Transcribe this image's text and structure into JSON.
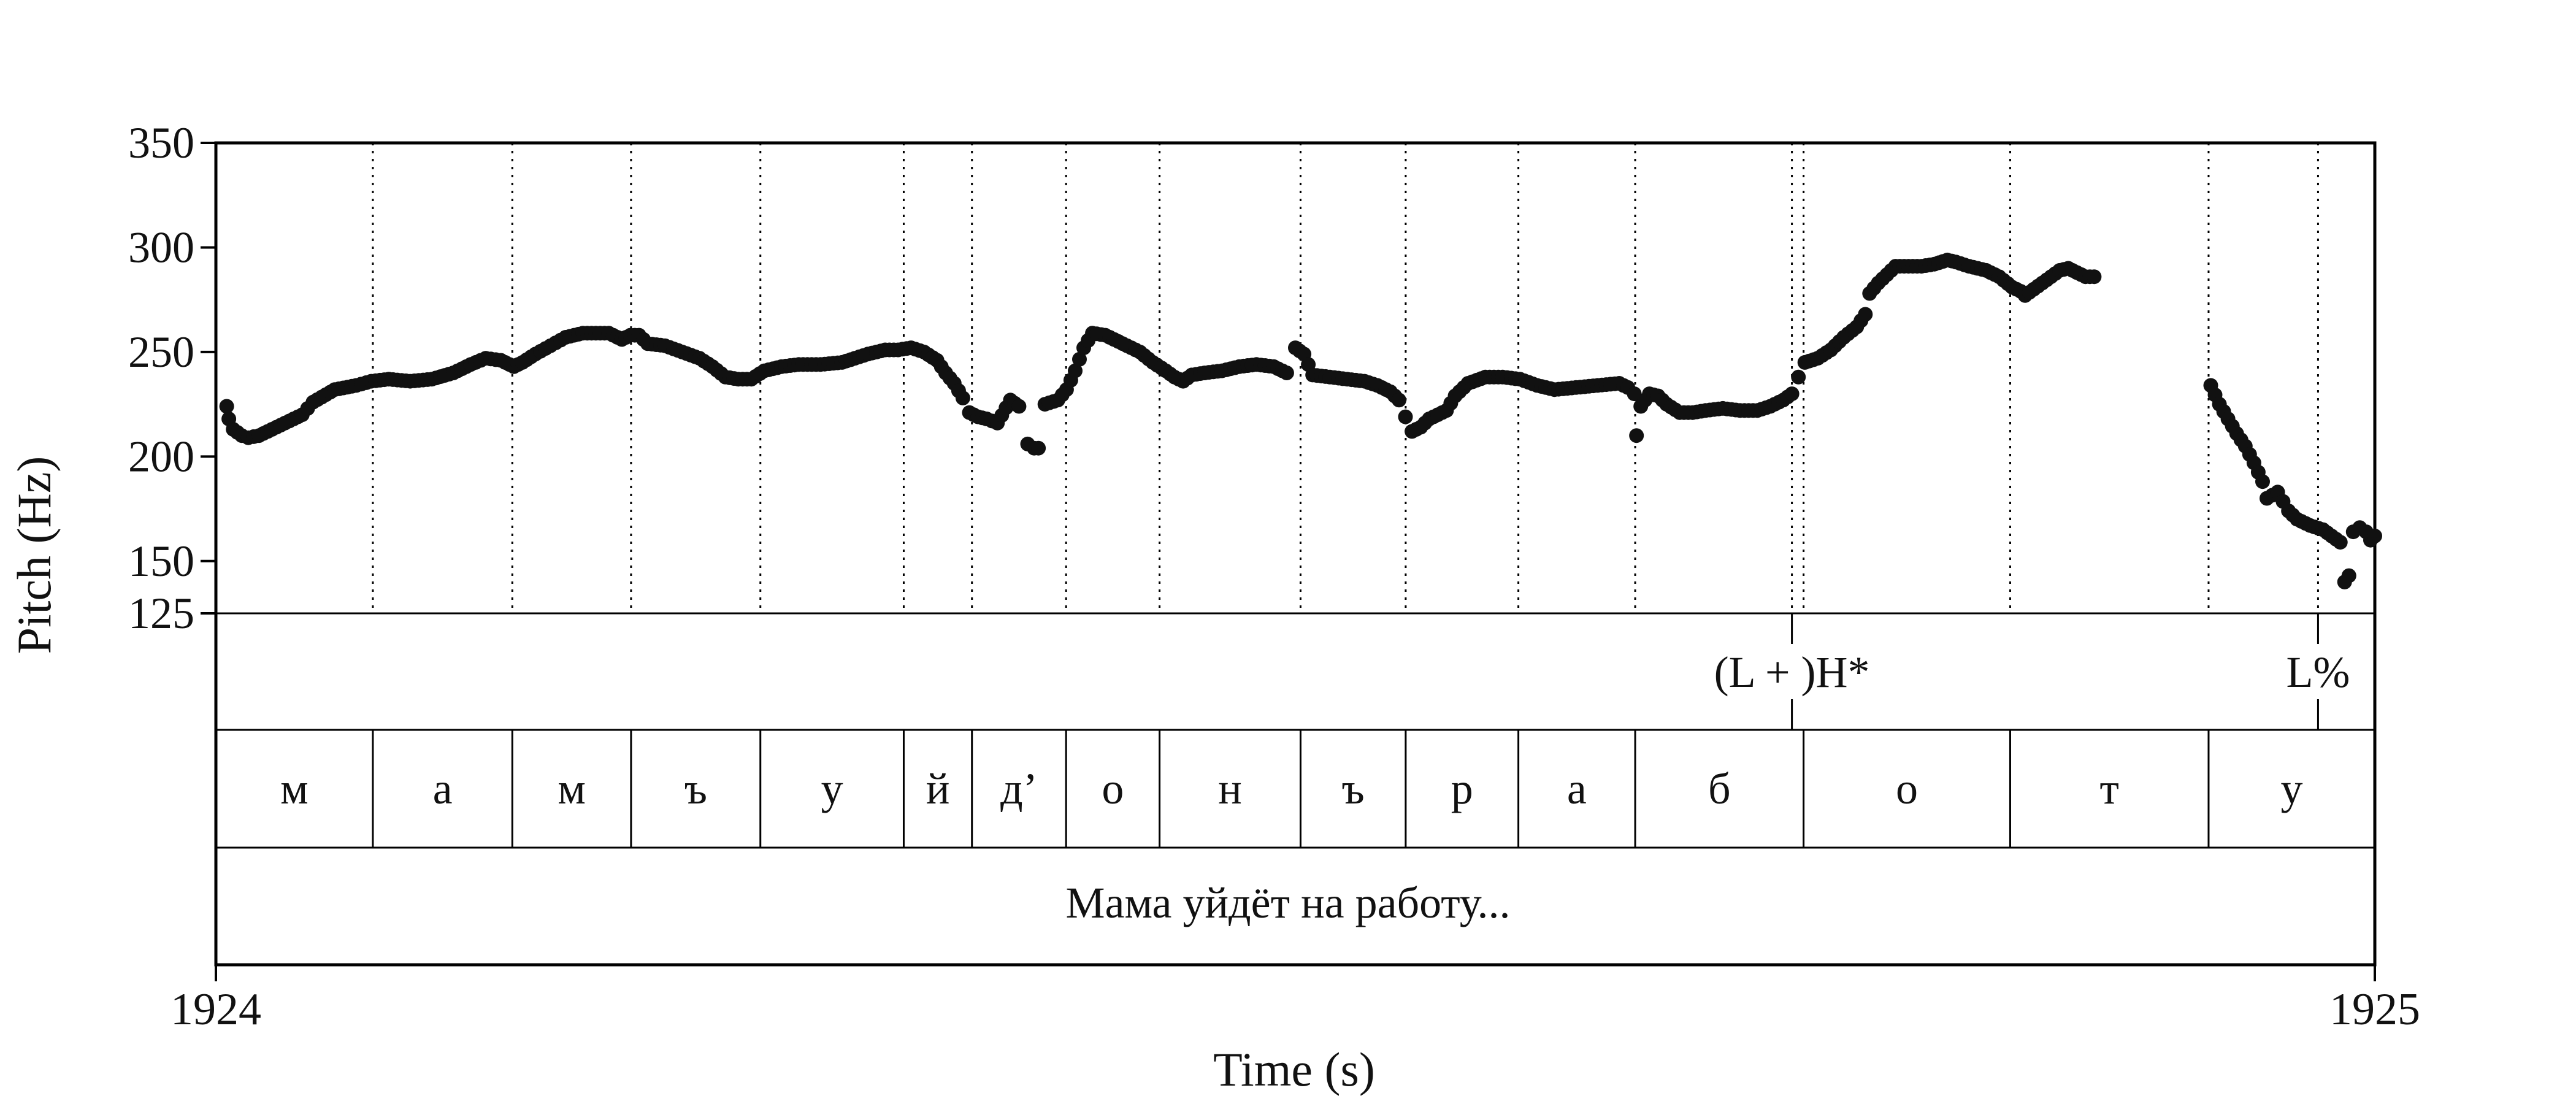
{
  "chart_data": {
    "type": "scatter",
    "xlabel": "Time (s)",
    "ylabel": "Pitch (Hz)",
    "xlim": [
      1924,
      1925
    ],
    "ylim": [
      125,
      350
    ],
    "y_ticks": [
      {
        "value": 350,
        "label": "350"
      },
      {
        "value": 300,
        "label": "300"
      },
      {
        "value": 250,
        "label": "250"
      },
      {
        "value": 200,
        "label": "200"
      },
      {
        "value": 150,
        "label": "150"
      },
      {
        "value": 125,
        "label": "125"
      }
    ],
    "x_ticks": [
      {
        "value": 1924,
        "label": "1924"
      },
      {
        "value": 1925,
        "label": "1925"
      }
    ],
    "segment_boundaries": [
      1924.0727,
      1924.1373,
      1924.1923,
      1924.2522,
      1924.3186,
      1924.3502,
      1924.3938,
      1924.4371,
      1924.5024,
      1924.5511,
      1924.6033,
      1924.6574,
      1924.7354,
      1924.8311,
      1924.923,
      1925.0
    ],
    "segments": [
      {
        "start": 1924.0,
        "end": 1924.0727,
        "label": "м"
      },
      {
        "start": 1924.0727,
        "end": 1924.1373,
        "label": "а"
      },
      {
        "start": 1924.1373,
        "end": 1924.1923,
        "label": "м"
      },
      {
        "start": 1924.1923,
        "end": 1924.2522,
        "label": "ъ"
      },
      {
        "start": 1924.2522,
        "end": 1924.3186,
        "label": "у"
      },
      {
        "start": 1924.3186,
        "end": 1924.3502,
        "label": "й"
      },
      {
        "start": 1924.3502,
        "end": 1924.3938,
        "label": "д’"
      },
      {
        "start": 1924.3938,
        "end": 1924.4371,
        "label": "о"
      },
      {
        "start": 1924.4371,
        "end": 1924.5024,
        "label": "н"
      },
      {
        "start": 1924.5024,
        "end": 1924.5511,
        "label": "ъ"
      },
      {
        "start": 1924.5511,
        "end": 1924.6033,
        "label": "р"
      },
      {
        "start": 1924.6033,
        "end": 1924.6574,
        "label": "а"
      },
      {
        "start": 1924.6574,
        "end": 1924.7354,
        "label": "б"
      },
      {
        "start": 1924.7354,
        "end": 1924.8311,
        "label": "о"
      },
      {
        "start": 1924.8311,
        "end": 1924.923,
        "label": "т"
      },
      {
        "start": 1924.923,
        "end": 1925.0,
        "label": "у"
      }
    ],
    "tones": [
      {
        "time": 1924.73,
        "label": "(L + )H*"
      },
      {
        "time": 1924.9737,
        "label": "L%"
      }
    ],
    "sentence": "Мама уйдёт на работу...",
    "pitch_series": [
      [
        1924.005,
        224
      ],
      [
        1924.006,
        218
      ],
      [
        1924.008,
        213
      ],
      [
        1924.012,
        210
      ],
      [
        1924.015,
        209
      ],
      [
        1924.02,
        210
      ],
      [
        1924.03,
        215
      ],
      [
        1924.04,
        220
      ],
      [
        1924.045,
        226
      ],
      [
        1924.055,
        232
      ],
      [
        1924.065,
        234
      ],
      [
        1924.072,
        236
      ],
      [
        1924.08,
        237
      ],
      [
        1924.09,
        236
      ],
      [
        1924.1,
        237
      ],
      [
        1924.11,
        240
      ],
      [
        1924.118,
        244
      ],
      [
        1924.125,
        247
      ],
      [
        1924.132,
        246
      ],
      [
        1924.138,
        243
      ],
      [
        1924.142,
        245
      ],
      [
        1924.148,
        249
      ],
      [
        1924.155,
        253
      ],
      [
        1924.162,
        257
      ],
      [
        1924.17,
        259
      ],
      [
        1924.176,
        259
      ],
      [
        1924.182,
        259
      ],
      [
        1924.188,
        256
      ],
      [
        1924.192,
        258
      ],
      [
        1924.196,
        258
      ],
      [
        1924.2,
        254
      ],
      [
        1924.208,
        253
      ],
      [
        1924.216,
        250
      ],
      [
        1924.224,
        247
      ],
      [
        1924.23,
        243
      ],
      [
        1924.236,
        238
      ],
      [
        1924.242,
        237
      ],
      [
        1924.248,
        237
      ],
      [
        1924.254,
        241
      ],
      [
        1924.262,
        243
      ],
      [
        1924.27,
        244
      ],
      [
        1924.28,
        244
      ],
      [
        1924.29,
        245
      ],
      [
        1924.296,
        247
      ],
      [
        1924.302,
        249
      ],
      [
        1924.31,
        251
      ],
      [
        1924.316,
        251
      ],
      [
        1924.322,
        252
      ],
      [
        1924.328,
        250
      ],
      [
        1924.334,
        246
      ],
      [
        1924.338,
        240
      ],
      [
        1924.342,
        235
      ],
      [
        1924.346,
        228
      ],
      [
        1924.349,
        221
      ],
      [
        1924.353,
        219
      ],
      [
        1924.357,
        218
      ],
      [
        1924.362,
        216
      ],
      [
        1924.368,
        227
      ],
      [
        1924.372,
        224
      ],
      [
        1924.376,
        206
      ],
      [
        1924.379,
        204
      ],
      [
        1924.381,
        204
      ],
      [
        1924.384,
        225
      ],
      [
        1924.39,
        227
      ],
      [
        1924.394,
        232
      ],
      [
        1924.398,
        241
      ],
      [
        1924.402,
        252
      ],
      [
        1924.406,
        259
      ],
      [
        1924.412,
        258
      ],
      [
        1924.42,
        254
      ],
      [
        1924.428,
        250
      ],
      [
        1924.434,
        245
      ],
      [
        1924.44,
        241
      ],
      [
        1924.444,
        238
      ],
      [
        1924.448,
        236
      ],
      [
        1924.452,
        239
      ],
      [
        1924.458,
        240
      ],
      [
        1924.466,
        241
      ],
      [
        1924.474,
        243
      ],
      [
        1924.482,
        244
      ],
      [
        1924.49,
        243
      ],
      [
        1924.496,
        240
      ],
      [
        1924.5,
        252
      ],
      [
        1924.504,
        249
      ],
      [
        1924.508,
        239
      ],
      [
        1924.516,
        238
      ],
      [
        1924.524,
        237
      ],
      [
        1924.532,
        236
      ],
      [
        1924.538,
        234
      ],
      [
        1924.544,
        231
      ],
      [
        1924.548,
        227
      ],
      [
        1924.551,
        219
      ],
      [
        1924.554,
        212
      ],
      [
        1924.558,
        214
      ],
      [
        1924.562,
        218
      ],
      [
        1924.57,
        222
      ],
      [
        1924.574,
        229
      ],
      [
        1924.58,
        235
      ],
      [
        1924.588,
        238
      ],
      [
        1924.596,
        238
      ],
      [
        1924.604,
        237
      ],
      [
        1924.612,
        234
      ],
      [
        1924.62,
        232
      ],
      [
        1924.63,
        233
      ],
      [
        1924.64,
        234
      ],
      [
        1924.65,
        235
      ],
      [
        1924.654,
        233
      ],
      [
        1924.657,
        230
      ],
      [
        1924.658,
        210
      ],
      [
        1924.66,
        224
      ],
      [
        1924.664,
        230
      ],
      [
        1924.668,
        229
      ],
      [
        1924.672,
        225
      ],
      [
        1924.678,
        221
      ],
      [
        1924.684,
        221
      ],
      [
        1924.69,
        222
      ],
      [
        1924.698,
        223
      ],
      [
        1924.706,
        222
      ],
      [
        1924.714,
        222
      ],
      [
        1924.72,
        224
      ],
      [
        1924.726,
        227
      ],
      [
        1924.73,
        230
      ],
      [
        1924.733,
        238
      ],
      [
        1924.736,
        245
      ],
      [
        1924.742,
        247
      ],
      [
        1924.748,
        251
      ],
      [
        1924.754,
        257
      ],
      [
        1924.76,
        262
      ],
      [
        1924.764,
        268
      ],
      [
        1924.766,
        278
      ],
      [
        1924.77,
        283
      ],
      [
        1924.774,
        287
      ],
      [
        1924.778,
        291
      ],
      [
        1924.784,
        291
      ],
      [
        1924.79,
        291
      ],
      [
        1924.796,
        292
      ],
      [
        1924.802,
        294
      ],
      [
        1924.806,
        293
      ],
      [
        1924.812,
        291
      ],
      [
        1924.82,
        289
      ],
      [
        1924.826,
        286
      ],
      [
        1924.832,
        281
      ],
      [
        1924.836,
        279
      ],
      [
        1924.838,
        277
      ],
      [
        1924.846,
        283
      ],
      [
        1924.85,
        286
      ],
      [
        1924.854,
        289
      ],
      [
        1924.858,
        290
      ],
      [
        1924.862,
        288
      ],
      [
        1924.866,
        286
      ],
      [
        1924.87,
        286
      ],
      [
        1924.924,
        234
      ],
      [
        1924.928,
        225
      ],
      [
        1924.932,
        218
      ],
      [
        1924.936,
        211
      ],
      [
        1924.94,
        205
      ],
      [
        1924.944,
        197
      ],
      [
        1924.948,
        188
      ],
      [
        1924.95,
        180
      ],
      [
        1924.955,
        183
      ],
      [
        1924.96,
        174
      ],
      [
        1924.964,
        170
      ],
      [
        1924.97,
        167
      ],
      [
        1924.976,
        165
      ],
      [
        1924.98,
        162
      ],
      [
        1924.984,
        159
      ],
      [
        1924.986,
        140
      ],
      [
        1924.988,
        143
      ],
      [
        1924.99,
        164
      ],
      [
        1924.993,
        166
      ],
      [
        1924.996,
        164
      ],
      [
        1924.998,
        160
      ],
      [
        1925.0,
        162
      ]
    ]
  }
}
